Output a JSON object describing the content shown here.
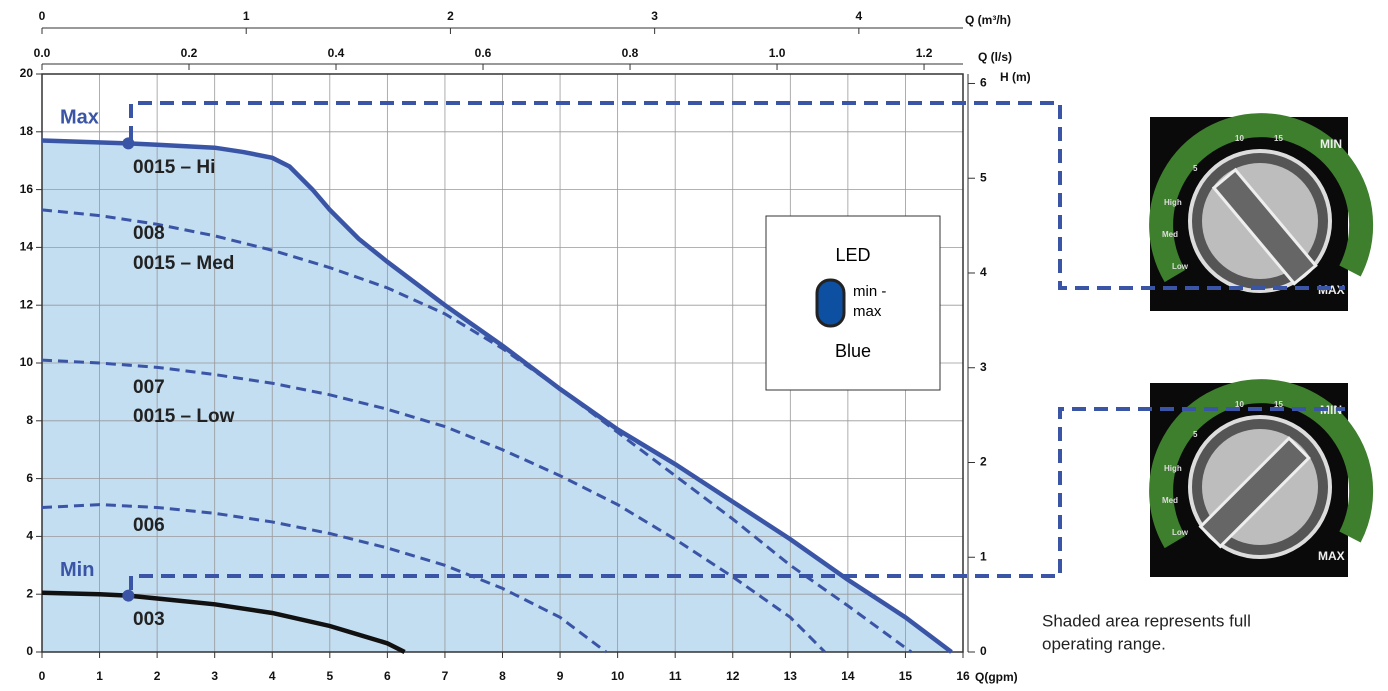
{
  "chart_data": {
    "type": "line",
    "xlabel": "Q(gpm)",
    "xlim": [
      0,
      16
    ],
    "xticks": [
      0,
      1,
      2,
      3,
      4,
      5,
      6,
      7,
      8,
      9,
      10,
      11,
      12,
      13,
      14,
      15,
      16
    ],
    "ylim": [
      0,
      20
    ],
    "yticks": [
      0,
      2,
      4,
      6,
      8,
      10,
      12,
      14,
      16,
      18,
      20
    ],
    "y2label": "H (m)",
    "y2lim": [
      0,
      6.1
    ],
    "y2ticks": [
      0,
      1,
      2,
      3,
      4,
      5,
      6
    ],
    "top_axes": [
      {
        "label": "Q (m³/h)",
        "lim": [
          0,
          4.51
        ],
        "ticks": [
          0,
          1,
          2,
          3,
          4
        ]
      },
      {
        "label": "Q (l/s)",
        "lim": [
          0,
          1.253
        ],
        "ticks": [
          {
            "value": 0,
            "label": "0.0"
          },
          0.2,
          0.4,
          0.6,
          0.8,
          {
            "value": 1,
            "label": "1.0"
          },
          1.2
        ]
      }
    ],
    "grid": true,
    "shade_color": "#c3ddf1",
    "series": [
      {
        "labels": [
          "0015 – Hi"
        ],
        "color": "#3a55a6",
        "dashed": false,
        "shaded": true,
        "x": [
          0,
          1.5,
          2,
          3,
          3.5,
          4,
          4.3,
          4.7,
          5,
          5.5,
          6,
          7,
          8,
          9,
          10,
          11,
          12,
          13,
          14,
          15,
          15.8
        ],
        "values": [
          17.7,
          17.6,
          17.55,
          17.45,
          17.3,
          17.1,
          16.8,
          16,
          15.3,
          14.3,
          13.5,
          12,
          10.6,
          9.1,
          7.7,
          6.5,
          5.2,
          3.9,
          2.5,
          1.2,
          0
        ]
      },
      {
        "labels": [
          "008",
          "0015 – Med"
        ],
        "color": "#3a55a6",
        "dashed": true,
        "shaded": false,
        "x": [
          0,
          1,
          2,
          3,
          4,
          5,
          6,
          7,
          8,
          9,
          10,
          11,
          12,
          13,
          14,
          15.1
        ],
        "values": [
          15.3,
          15.1,
          14.8,
          14.4,
          13.9,
          13.3,
          12.6,
          11.7,
          10.5,
          9.1,
          7.6,
          6.1,
          4.6,
          3.0,
          1.6,
          0
        ]
      },
      {
        "labels": [
          "007",
          "0015 – Low"
        ],
        "color": "#3a55a6",
        "dashed": true,
        "shaded": false,
        "x": [
          0,
          1,
          2,
          3,
          4,
          5,
          6,
          7,
          8,
          9,
          10,
          11,
          12,
          13,
          13.6
        ],
        "values": [
          10.1,
          10.0,
          9.85,
          9.6,
          9.3,
          8.9,
          8.4,
          7.8,
          7.0,
          6.1,
          5.1,
          3.9,
          2.6,
          1.2,
          0
        ]
      },
      {
        "labels": [
          "006"
        ],
        "color": "#3a55a6",
        "dashed": true,
        "shaded": false,
        "x": [
          0,
          1,
          2,
          3,
          4,
          5,
          6,
          7,
          8,
          9,
          9.8
        ],
        "values": [
          5.0,
          5.1,
          5.0,
          4.8,
          4.5,
          4.1,
          3.6,
          3.0,
          2.2,
          1.2,
          0
        ]
      },
      {
        "labels": [
          "003"
        ],
        "color": "#111111",
        "dashed": false,
        "shaded": false,
        "x": [
          0,
          1,
          1.5,
          2,
          3,
          4,
          5,
          6,
          6.3
        ],
        "values": [
          2.05,
          2.0,
          1.95,
          1.85,
          1.65,
          1.35,
          0.9,
          0.3,
          0
        ]
      }
    ],
    "markers": [
      {
        "text": "Max",
        "x": 1.5,
        "y": 17.6,
        "color": "#3a55a6"
      },
      {
        "text": "Min",
        "x": 1.5,
        "y": 1.95,
        "color": "#3a55a6"
      }
    ],
    "led_box": {
      "title": "LED",
      "item": [
        "min -",
        "max"
      ],
      "color_name": "Blue",
      "led_color": "#0d4fa0"
    },
    "note": [
      "Shaded area represents full",
      "operating range."
    ],
    "dial_labels": {
      "min": "MIN",
      "max": "MAX",
      "speeds": [
        "Low",
        "Med",
        "High",
        "5",
        "10",
        "15"
      ]
    }
  }
}
